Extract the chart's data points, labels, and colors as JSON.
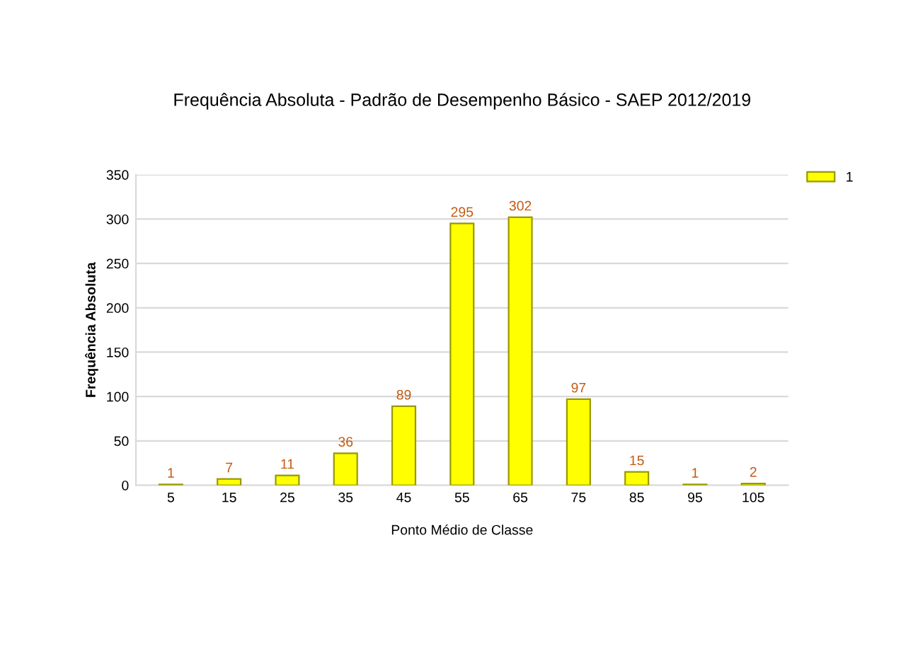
{
  "chart_data": {
    "type": "bar",
    "title": "Frequência Absoluta - Padrão de Desempenho Básico - SAEP 2012/2019",
    "xlabel": "Ponto Médio de Classe",
    "ylabel": "Frequência Absoluta",
    "categories": [
      "5",
      "15",
      "25",
      "35",
      "45",
      "55",
      "65",
      "75",
      "85",
      "95",
      "105"
    ],
    "series": [
      {
        "name": "1",
        "color": "#ffff00",
        "values": [
          1,
          7,
          11,
          36,
          89,
          295,
          302,
          97,
          15,
          1,
          2
        ]
      }
    ],
    "ylim": [
      0,
      350
    ],
    "yticks": [
      0,
      50,
      100,
      150,
      200,
      250,
      300,
      350
    ],
    "grid": "y",
    "legend": "top right",
    "data_labels": true
  }
}
